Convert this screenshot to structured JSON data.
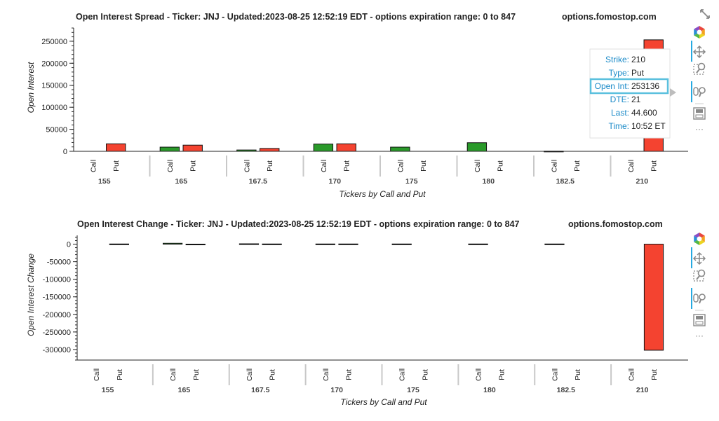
{
  "top_chart": {
    "title": "Open Interest Spread - Ticker: JNJ - Updated:2023-08-25 12:52:19 EDT - options expiration range: 0 to 847",
    "watermark": "options.fomostop.com",
    "ylabel": "Open Interest",
    "xlabel": "Tickers by Call and Put",
    "yticks": [
      "250000",
      "200000",
      "150000",
      "100000",
      "50000",
      "0"
    ]
  },
  "bottom_chart": {
    "title": "Open Interest Change - Ticker: JNJ - Updated:2023-08-25 12:52:19 EDT - options expiration range: 0 to 847",
    "watermark": "options.fomostop.com",
    "ylabel": "Open Interest Change",
    "xlabel": "Tickers by Call and Put",
    "yticks": [
      "0",
      "-50000",
      "-100000",
      "-150000",
      "-200000",
      "-250000",
      "-300000"
    ]
  },
  "tooltip": {
    "rows": [
      {
        "key": "Strike:",
        "value": "210"
      },
      {
        "key": "Type:",
        "value": "Put"
      },
      {
        "key": "Open Int:",
        "value": "253136"
      },
      {
        "key": "DTE:",
        "value": "21"
      },
      {
        "key": "Last:",
        "value": "44.600"
      },
      {
        "key": "Time:",
        "value": "10:52 ET"
      }
    ]
  },
  "toolbar": {
    "icons": [
      "bokeh-logo-icon",
      "pan-icon",
      "box-zoom-icon",
      "wheel-zoom-icon",
      "save-icon",
      "more-icon"
    ],
    "more_label": "···"
  },
  "colors": {
    "call": "#2a9a2a",
    "put": "#f44330",
    "highlight": "#5bc0de",
    "tooltip_key": "#1a8ac8"
  },
  "chart_data": [
    {
      "type": "bar",
      "title": "Open Interest Spread - Ticker: JNJ - Updated:2023-08-25 12:52:19 EDT - options expiration range: 0 to 847",
      "xlabel": "Tickers by Call and Put",
      "ylabel": "Open Interest",
      "ylim": [
        0,
        280000
      ],
      "groups": [
        "155",
        "165",
        "167.5",
        "170",
        "175",
        "180",
        "182.5",
        "210"
      ],
      "subcategories": [
        "Call",
        "Put"
      ],
      "series": [
        {
          "name": "Call",
          "values": [
            0,
            9500,
            3000,
            16500,
            9500,
            19500,
            300,
            0
          ]
        },
        {
          "name": "Put",
          "values": [
            17000,
            14000,
            6500,
            17000,
            0,
            0,
            0,
            253136
          ]
        }
      ],
      "grid": false
    },
    {
      "type": "bar",
      "title": "Open Interest Change - Ticker: JNJ - Updated:2023-08-25 12:52:19 EDT - options expiration range: 0 to 847",
      "xlabel": "Tickers by Call and Put",
      "ylabel": "Open Interest Change",
      "ylim": [
        -330000,
        25000
      ],
      "groups": [
        "155",
        "165",
        "167.5",
        "170",
        "175",
        "180",
        "182.5",
        "210"
      ],
      "subcategories": [
        "Call",
        "Put"
      ],
      "series": [
        {
          "name": "Call",
          "values": [
            0,
            2500,
            1000,
            500,
            500,
            500,
            500,
            0
          ]
        },
        {
          "name": "Put",
          "values": [
            500,
            -2000,
            500,
            500,
            0,
            0,
            0,
            -302000
          ]
        }
      ],
      "grid": false
    }
  ]
}
